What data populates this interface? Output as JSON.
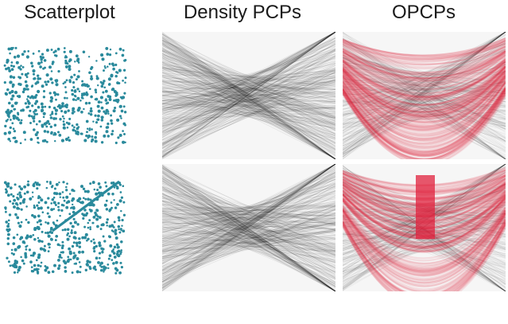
{
  "titles": {
    "scatterplot": "Scatterplot",
    "density_pcps": "Density PCPs",
    "opcps": "OPCPs"
  },
  "colors": {
    "scatter_point": "#2a8a9c",
    "density_line": "#000000",
    "opcp_gray": "#000000",
    "opcp_red": "#e0203c",
    "panel_bg": "#f6f6f6"
  },
  "rows": [
    {
      "pattern": "uniform random",
      "has_line_structure": false
    },
    {
      "pattern": "uniform random with diagonal linear structure",
      "has_line_structure": true
    }
  ]
}
